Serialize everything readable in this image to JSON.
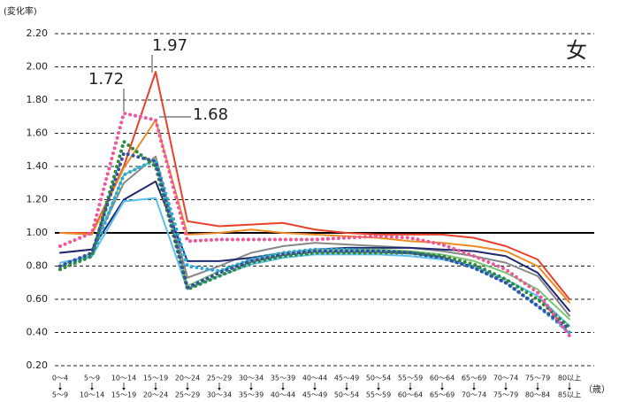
{
  "chart_data": {
    "type": "line",
    "y_label": "(変化率)",
    "panel_label": "女",
    "x_unit": "（歳）",
    "categories": [
      "0～4",
      "5～9",
      "10～14",
      "15～19",
      "20～24",
      "25～29",
      "30～34",
      "35～39",
      "40～44",
      "45～49",
      "50～54",
      "55～59",
      "60～64",
      "65～69",
      "70～74",
      "75～79",
      "80以上"
    ],
    "categories_to": [
      "5～9",
      "10～14",
      "15～19",
      "20～24",
      "25～29",
      "30～34",
      "35～39",
      "40～44",
      "45～49",
      "50～54",
      "55～59",
      "60～64",
      "65～69",
      "70～74",
      "75～79",
      "80～84",
      "85以上"
    ],
    "ylim": [
      0.2,
      2.2
    ],
    "yticks": [
      {
        "value": 0.2,
        "label": "0.20"
      },
      {
        "value": 0.4,
        "label": "0.40"
      },
      {
        "value": 0.6,
        "label": "0.60"
      },
      {
        "value": 0.8,
        "label": "0.80"
      },
      {
        "value": 1.0,
        "label": "1.00"
      },
      {
        "value": 1.2,
        "label": "1.20"
      },
      {
        "value": 1.4,
        "label": "1.40"
      },
      {
        "value": 1.6,
        "label": "1.60"
      },
      {
        "value": 1.8,
        "label": "1.80"
      },
      {
        "value": 2.0,
        "label": "2.00"
      },
      {
        "value": 2.2,
        "label": "2.20"
      }
    ],
    "reference_line": 1.0,
    "grid": true,
    "annotations": [
      "1.97",
      "1.72",
      "1.68"
    ],
    "series": [
      {
        "color": "#e8412c",
        "style": "solid",
        "values": [
          1.0,
          1.0,
          1.4,
          1.97,
          1.07,
          1.04,
          1.05,
          1.06,
          1.02,
          1.0,
          0.99,
          0.99,
          0.99,
          0.97,
          0.92,
          0.84,
          0.6
        ]
      },
      {
        "color": "#f08a24",
        "style": "solid",
        "values": [
          1.0,
          0.99,
          1.39,
          1.68,
          0.99,
          1.0,
          1.02,
          1.0,
          0.99,
          0.98,
          0.97,
          0.95,
          0.94,
          0.92,
          0.89,
          0.8,
          0.58
        ]
      },
      {
        "color": "#888888",
        "style": "solid",
        "values": [
          0.88,
          0.9,
          1.3,
          1.46,
          0.73,
          0.8,
          0.88,
          0.92,
          0.94,
          0.93,
          0.92,
          0.91,
          0.89,
          0.86,
          0.82,
          0.74,
          0.5
        ]
      },
      {
        "color": "#1f2a6e",
        "style": "solid",
        "values": [
          0.88,
          0.9,
          1.2,
          1.31,
          0.83,
          0.83,
          0.85,
          0.88,
          0.9,
          0.91,
          0.91,
          0.91,
          0.9,
          0.89,
          0.86,
          0.76,
          0.53
        ]
      },
      {
        "color": "#7cc576",
        "style": "solid",
        "values": [
          0.8,
          0.88,
          1.35,
          1.44,
          0.68,
          0.77,
          0.84,
          0.88,
          0.9,
          0.9,
          0.9,
          0.89,
          0.87,
          0.83,
          0.76,
          0.66,
          0.48
        ]
      },
      {
        "color": "#5bc0eb",
        "style": "solid",
        "values": [
          0.82,
          0.86,
          1.19,
          1.21,
          0.66,
          0.74,
          0.81,
          0.85,
          0.87,
          0.87,
          0.87,
          0.86,
          0.84,
          0.8,
          0.72,
          0.62,
          0.44
        ]
      },
      {
        "color": "#2aa9e0",
        "style": "dotted",
        "values": [
          0.8,
          0.86,
          1.35,
          1.44,
          0.8,
          0.77,
          0.84,
          0.88,
          0.9,
          0.9,
          0.89,
          0.88,
          0.85,
          0.79,
          0.7,
          0.56,
          0.4
        ]
      },
      {
        "color": "#2e8b3a",
        "style": "dotted",
        "values": [
          0.78,
          0.86,
          1.55,
          1.4,
          0.66,
          0.74,
          0.82,
          0.86,
          0.88,
          0.88,
          0.88,
          0.88,
          0.86,
          0.81,
          0.72,
          0.6,
          0.43
        ]
      },
      {
        "color": "#3b4fa0",
        "style": "dotted",
        "values": [
          0.8,
          0.88,
          1.48,
          1.43,
          0.67,
          0.76,
          0.83,
          0.87,
          0.89,
          0.89,
          0.89,
          0.88,
          0.85,
          0.79,
          0.7,
          0.56,
          0.42
        ]
      },
      {
        "color": "#f0559a",
        "style": "dotted",
        "values": [
          0.92,
          1.0,
          1.72,
          1.68,
          0.95,
          0.96,
          0.96,
          0.96,
          0.96,
          0.97,
          0.98,
          0.97,
          0.93,
          0.86,
          0.78,
          0.64,
          0.38
        ]
      }
    ]
  }
}
